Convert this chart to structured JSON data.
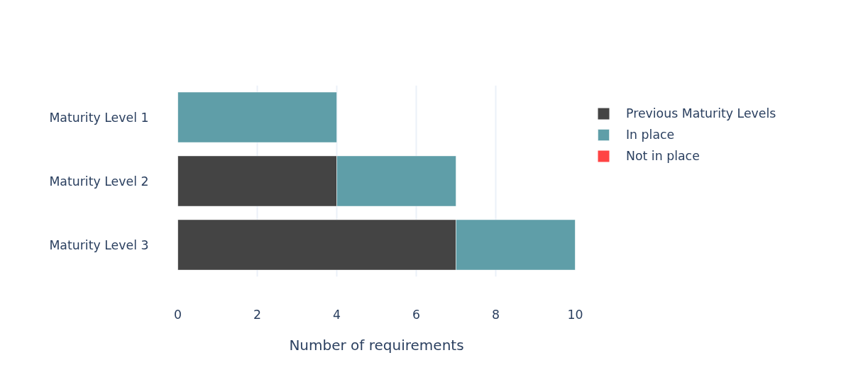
{
  "chart_data": {
    "type": "bar",
    "orientation": "horizontal",
    "stacked": true,
    "categories": [
      "Maturity Level 1",
      "Maturity Level 2",
      "Maturity Level 3"
    ],
    "series": [
      {
        "name": "Previous Maturity Levels",
        "color": "#444444",
        "values": [
          0,
          4,
          7
        ]
      },
      {
        "name": "In place",
        "color": "#5f9ea8",
        "values": [
          4,
          3,
          3
        ]
      },
      {
        "name": "Not in place",
        "color": "#ff4444",
        "values": [
          0,
          0,
          0
        ]
      }
    ],
    "xlabel": "Number of requirements",
    "xlim": [
      0,
      10
    ],
    "xticks": [
      0,
      2,
      4,
      6,
      8,
      10
    ],
    "grid": "x",
    "legend": "top right"
  }
}
